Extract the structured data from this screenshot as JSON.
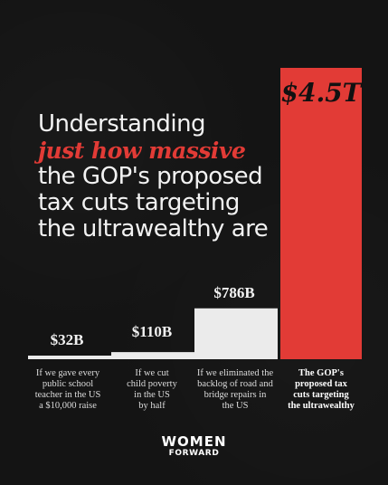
{
  "headline": {
    "line1": "Understanding",
    "accent": "just how massive",
    "line3": "the GOP's proposed",
    "line4": "tax cuts targeting",
    "line5": "the ultrawealthy are"
  },
  "colors": {
    "background": "#141414",
    "bar_light": "#ebebeb",
    "bar_accent": "#e23b36",
    "accent_text": "#e23b36"
  },
  "chart_data": {
    "type": "bar",
    "categories": [
      "If we gave every public school teacher in the US a $10,000 raise",
      "If we cut child poverty in the US by half",
      "If we eliminated the backlog of road and bridge repairs in the US",
      "The GOP's proposed tax cuts targeting the ultrawealthy"
    ],
    "values": [
      32,
      110,
      786,
      4500
    ],
    "value_labels": [
      "$32B",
      "$110B",
      "$786B",
      "$4.5T"
    ],
    "unit": "billions of dollars",
    "axis_visible": false,
    "grid": false
  },
  "captions": [
    [
      "If we gave every",
      "public school",
      "teacher in the US",
      "a $10,000 raise"
    ],
    [
      "If we cut",
      "child poverty",
      "in the US",
      "by half"
    ],
    [
      "If we eliminated the",
      "backlog of road and",
      "bridge repairs in",
      "the US"
    ],
    [
      "The GOP's",
      "proposed tax",
      "cuts targeting",
      "the ultrawealthy"
    ]
  ],
  "logo": {
    "line1": "WOMEN",
    "line2": "FORWARD"
  }
}
